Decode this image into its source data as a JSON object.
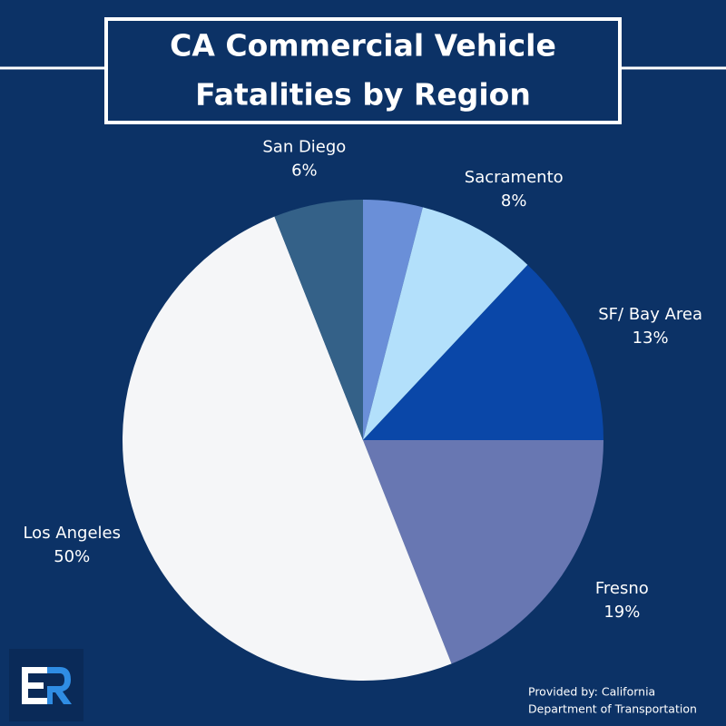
{
  "chart_data": {
    "type": "pie",
    "title": [
      "CA Commercial Vehicle",
      "Fatalities by Region"
    ],
    "categories": [
      null,
      "Sacramento",
      "SF/ Bay Area",
      "Fresno",
      "Los Angeles",
      "San Diego"
    ],
    "values": [
      4,
      8,
      13,
      19,
      50,
      6
    ],
    "value_labels": [
      null,
      "8%",
      "13%",
      "19%",
      "50%",
      "6%"
    ],
    "colors": [
      "#6a8fd8",
      "#b3e0fb",
      "#0a47a8",
      "#6877b2",
      "#f5f6f8",
      "#346188"
    ],
    "source": [
      "Provided by: California",
      "Department of Transportation"
    ]
  }
}
